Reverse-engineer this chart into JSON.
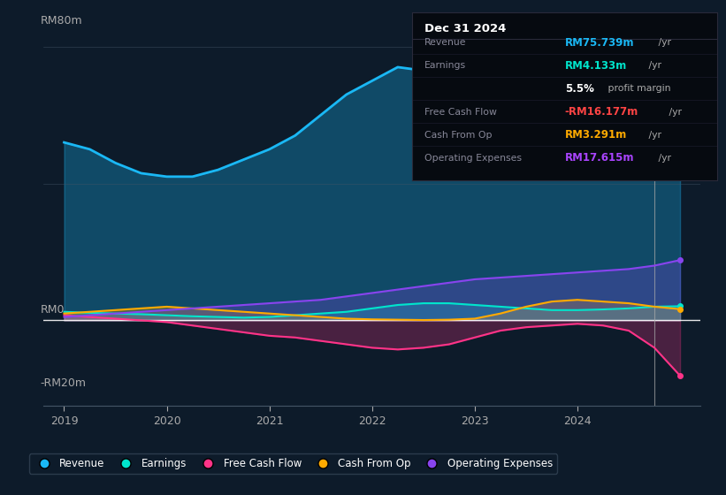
{
  "background_color": "#0d1b2a",
  "plot_bg_color": "#0d1b2a",
  "title": "Dec 31 2024",
  "x_years": [
    2019,
    2019.25,
    2019.5,
    2019.75,
    2020,
    2020.25,
    2020.5,
    2020.75,
    2021,
    2021.25,
    2021.5,
    2021.75,
    2022,
    2022.25,
    2022.5,
    2022.75,
    2023,
    2023.25,
    2023.5,
    2023.75,
    2024,
    2024.25,
    2024.5,
    2024.75,
    2025
  ],
  "revenue": [
    52,
    50,
    46,
    43,
    42,
    42,
    44,
    47,
    50,
    54,
    60,
    66,
    70,
    74,
    73,
    71,
    71,
    70,
    69,
    69,
    70,
    71,
    72,
    74,
    75.739
  ],
  "earnings": [
    2.5,
    2.2,
    2.0,
    1.8,
    1.5,
    1.2,
    1.0,
    0.8,
    1.0,
    1.5,
    2.0,
    2.5,
    3.5,
    4.5,
    5.0,
    5.0,
    4.5,
    4.0,
    3.5,
    3.0,
    3.0,
    3.2,
    3.5,
    4.0,
    4.133
  ],
  "free_cash_flow": [
    1.5,
    1.0,
    0.5,
    0.0,
    -0.5,
    -1.5,
    -2.5,
    -3.5,
    -4.5,
    -5.0,
    -6.0,
    -7.0,
    -8.0,
    -8.5,
    -8.0,
    -7.0,
    -5.0,
    -3.0,
    -2.0,
    -1.5,
    -1.0,
    -1.5,
    -3.0,
    -8.0,
    -16.177
  ],
  "cash_from_op": [
    2.0,
    2.5,
    3.0,
    3.5,
    4.0,
    3.5,
    3.0,
    2.5,
    2.0,
    1.5,
    1.0,
    0.5,
    0.3,
    0.2,
    0.1,
    0.2,
    0.5,
    2.0,
    4.0,
    5.5,
    6.0,
    5.5,
    5.0,
    4.0,
    3.291
  ],
  "operating_expenses": [
    1.0,
    1.5,
    2.0,
    2.5,
    3.0,
    3.5,
    4.0,
    4.5,
    5.0,
    5.5,
    6.0,
    7.0,
    8.0,
    9.0,
    10.0,
    11.0,
    12.0,
    12.5,
    13.0,
    13.5,
    14.0,
    14.5,
    15.0,
    16.0,
    17.615
  ],
  "ylim": [
    -25,
    90
  ],
  "xlim": [
    2018.8,
    2025.2
  ],
  "colors": {
    "revenue": "#1ab8f5",
    "earnings": "#00e5cc",
    "free_cash_flow": "#ff3388",
    "cash_from_op": "#ffaa00",
    "operating_expenses": "#8844ee"
  },
  "legend": [
    {
      "label": "Revenue",
      "color": "#1ab8f5"
    },
    {
      "label": "Earnings",
      "color": "#00e5cc"
    },
    {
      "label": "Free Cash Flow",
      "color": "#ff3388"
    },
    {
      "label": "Cash From Op",
      "color": "#ffaa00"
    },
    {
      "label": "Operating Expenses",
      "color": "#8844ee"
    }
  ],
  "vline_x": 2024.75,
  "tooltip_rows": [
    {
      "label": "Revenue",
      "value": "RM75.739m",
      "suffix": " /yr",
      "color": "#1ab8f5",
      "bold": true
    },
    {
      "label": "Earnings",
      "value": "RM4.133m",
      "suffix": " /yr",
      "color": "#00e5cc",
      "bold": true
    },
    {
      "label": "",
      "value": "5.5%",
      "suffix": " profit margin",
      "color": "white",
      "bold": true
    },
    {
      "label": "Free Cash Flow",
      "value": "-RM16.177m",
      "suffix": " /yr",
      "color": "#ff4444",
      "bold": true
    },
    {
      "label": "Cash From Op",
      "value": "RM3.291m",
      "suffix": " /yr",
      "color": "#ffaa00",
      "bold": true
    },
    {
      "label": "Operating Expenses",
      "value": "RM17.615m",
      "suffix": " /yr",
      "color": "#aa44ff",
      "bold": true
    }
  ]
}
